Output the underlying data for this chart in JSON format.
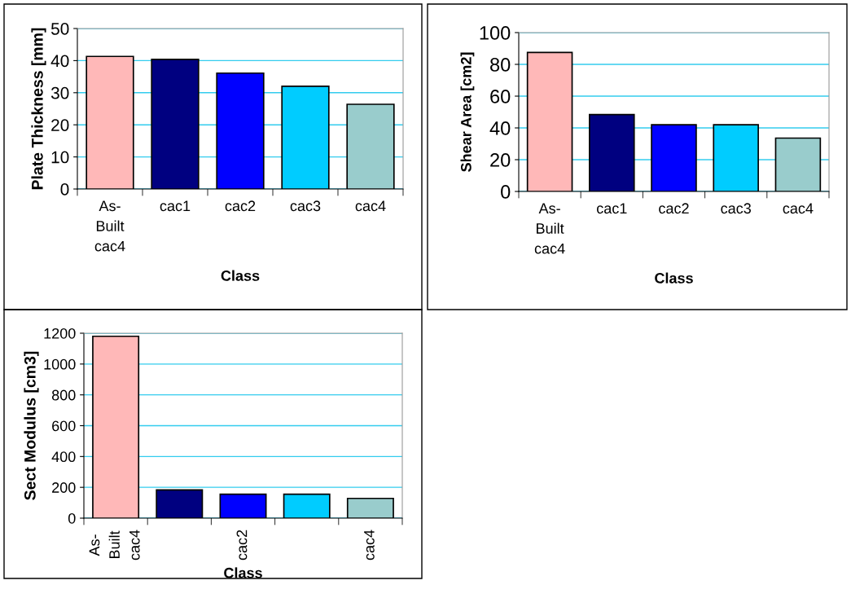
{
  "chart_data": [
    {
      "type": "bar",
      "xlabel": "Class",
      "ylabel": "Plate Thickness [mm]",
      "categories": [
        "As-Built cac4",
        "cac1",
        "cac2",
        "cac3",
        "cac4"
      ],
      "values": [
        41.3,
        40.4,
        36.1,
        32,
        26.4
      ],
      "colors": [
        "#ffb8b8",
        "#000080",
        "#0000ff",
        "#00ccff",
        "#99cccc"
      ],
      "ylim": [
        0,
        50
      ],
      "yticks": [
        0,
        10,
        20,
        30,
        40,
        50
      ],
      "grid": "y"
    },
    {
      "type": "bar",
      "xlabel": "Class",
      "ylabel": "Shear Area [cm2]",
      "categories": [
        "As-Built cac4",
        "cac1",
        "cac2",
        "cac3",
        "cac4"
      ],
      "values": [
        87.5,
        48.4,
        42,
        42,
        33.6
      ],
      "colors": [
        "#ffb8b8",
        "#000080",
        "#0000ff",
        "#00ccff",
        "#99cccc"
      ],
      "ylim": [
        0,
        100
      ],
      "yticks": [
        0,
        20,
        40,
        60,
        80,
        100
      ],
      "grid": "y"
    },
    {
      "type": "bar",
      "xlabel": "Class",
      "ylabel": "Sect Modulus [cm3]",
      "categories": [
        "As-Built cac4",
        null,
        "cac2",
        null,
        "cac4"
      ],
      "values": [
        1180,
        183,
        155,
        155,
        128
      ],
      "colors": [
        "#ffb8b8",
        "#000080",
        "#0000ff",
        "#00ccff",
        "#99cccc"
      ],
      "ylim": [
        0,
        1200
      ],
      "yticks": [
        0,
        200,
        400,
        600,
        800,
        1000,
        1200
      ],
      "grid": "y"
    }
  ]
}
